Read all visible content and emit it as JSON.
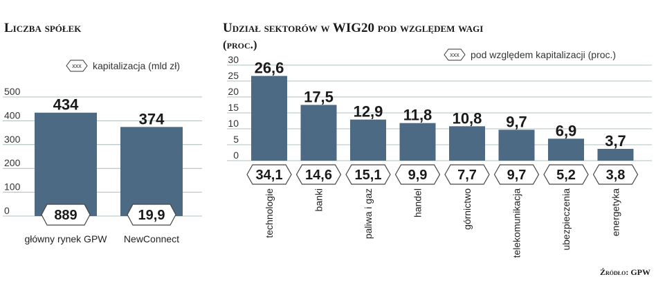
{
  "chart_data": [
    {
      "type": "bar",
      "title": "Liczba spółek",
      "legend": "kapitalizacja (mld zł)",
      "legend_symbol": "xxx",
      "categories": [
        "główny rynek GPW",
        "NewConnect"
      ],
      "values": [
        434,
        374
      ],
      "value_labels": [
        "434",
        "374"
      ],
      "capitalization_labels": [
        "889",
        "19,9"
      ],
      "yticks": [
        "0",
        "100",
        "200",
        "300",
        "400",
        "500"
      ],
      "ylim": [
        0,
        500
      ],
      "bar_color": "#4d6a85"
    },
    {
      "type": "bar",
      "title": "Udział sektorów w WIG20 pod względem wagi",
      "subtitle": "(proc.)",
      "legend": "pod względem kapitalizacji (proc.)",
      "legend_symbol": "xxx",
      "categories": [
        "technologie",
        "banki",
        "paliwa i gaz",
        "handel",
        "górnictwo",
        "telekomunikacja",
        "ubezpieczenia",
        "energetyka"
      ],
      "values": [
        26.6,
        17.5,
        12.9,
        11.8,
        10.8,
        9.7,
        6.9,
        3.7
      ],
      "value_labels": [
        "26,6",
        "17,5",
        "12,9",
        "11,8",
        "10,8",
        "9,7",
        "6,9",
        "3,7"
      ],
      "capitalization_labels": [
        "34,1",
        "14,6",
        "15,1",
        "9,9",
        "7,7",
        "9,7",
        "5,2",
        "3,8"
      ],
      "yticks": [
        "0",
        "5",
        "10",
        "15",
        "20",
        "25",
        "30"
      ],
      "ylim": [
        0,
        30
      ],
      "bar_color": "#4d6a85"
    }
  ],
  "source": "Źródło: GPW"
}
